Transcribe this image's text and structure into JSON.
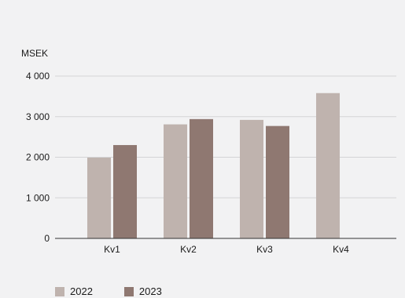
{
  "chart_data": {
    "type": "bar",
    "ylabel": "MSEK",
    "categories": [
      "Kv1",
      "Kv2",
      "Kv3",
      "Kv4"
    ],
    "ylim": [
      0,
      4000
    ],
    "yticks": [
      0,
      1000,
      2000,
      3000,
      4000
    ],
    "ytick_labels": [
      "0",
      "1 000",
      "2 000",
      "3 000",
      "4 000"
    ],
    "grid": true,
    "legend_position": "bottom-left",
    "series": [
      {
        "name": "2022",
        "color": "#bfb3ae",
        "values": [
          1990,
          2810,
          2920,
          3580
        ]
      },
      {
        "name": "2023",
        "color": "#8f7871",
        "values": [
          2300,
          2940,
          2770,
          null
        ]
      }
    ]
  }
}
